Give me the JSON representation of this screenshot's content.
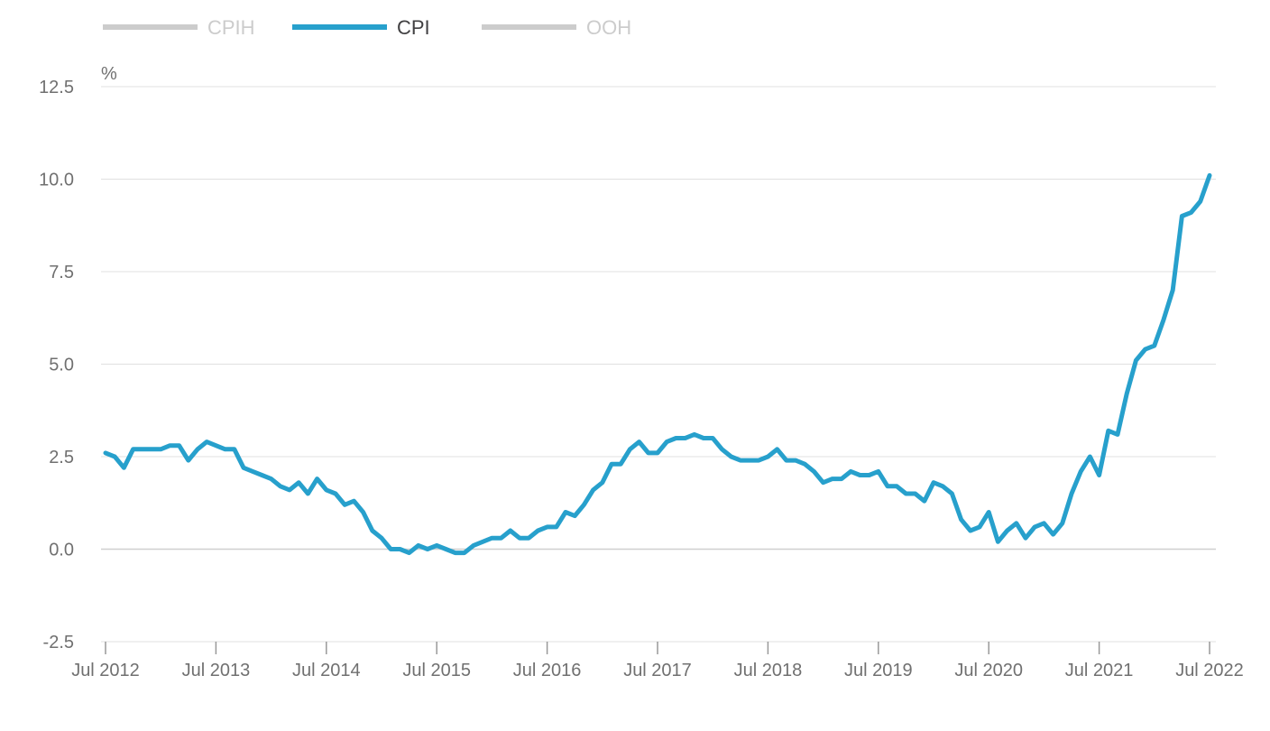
{
  "chart_data": {
    "type": "line",
    "title": "",
    "xlabel": "",
    "ylabel": "%",
    "ylim": [
      -2.5,
      12.5
    ],
    "yticks": [
      "12.5",
      "10.0",
      "7.5",
      "5.0",
      "2.5",
      "0.0",
      "-2.5"
    ],
    "ytick_values": [
      12.5,
      10.0,
      7.5,
      5.0,
      2.5,
      0.0,
      -2.5
    ],
    "xticks": [
      "Jul 2012",
      "Jul 2013",
      "Jul 2014",
      "Jul 2015",
      "Jul 2016",
      "Jul 2017",
      "Jul 2018",
      "Jul 2019",
      "Jul 2020",
      "Jul 2021",
      "Jul 2022"
    ],
    "grid": true,
    "legend_position": "top-left",
    "legend": [
      {
        "name": "CPIH",
        "active": false,
        "color": "#cccccc"
      },
      {
        "name": "CPI",
        "active": true,
        "color": "#27a0cc"
      },
      {
        "name": "OOH",
        "active": false,
        "color": "#cccccc"
      }
    ],
    "x_start": "Jul 2012",
    "x_end": "Jul 2022",
    "series": [
      {
        "name": "CPI",
        "color": "#27a0cc",
        "values": [
          2.6,
          2.5,
          2.2,
          2.7,
          2.7,
          2.7,
          2.7,
          2.8,
          2.8,
          2.4,
          2.7,
          2.9,
          2.8,
          2.7,
          2.7,
          2.2,
          2.1,
          2.0,
          1.9,
          1.7,
          1.6,
          1.8,
          1.5,
          1.9,
          1.6,
          1.5,
          1.2,
          1.3,
          1.0,
          0.5,
          0.3,
          0.0,
          0.0,
          -0.1,
          0.1,
          0.0,
          0.1,
          0.0,
          -0.1,
          -0.1,
          0.1,
          0.2,
          0.3,
          0.3,
          0.5,
          0.3,
          0.3,
          0.5,
          0.6,
          0.6,
          1.0,
          0.9,
          1.2,
          1.6,
          1.8,
          2.3,
          2.3,
          2.7,
          2.9,
          2.6,
          2.6,
          2.9,
          3.0,
          3.0,
          3.1,
          3.0,
          3.0,
          2.7,
          2.5,
          2.4,
          2.4,
          2.4,
          2.5,
          2.7,
          2.4,
          2.4,
          2.3,
          2.1,
          1.8,
          1.9,
          1.9,
          2.1,
          2.0,
          2.0,
          2.1,
          1.7,
          1.7,
          1.5,
          1.5,
          1.3,
          1.8,
          1.7,
          1.5,
          0.8,
          0.5,
          0.6,
          1.0,
          0.2,
          0.5,
          0.7,
          0.3,
          0.6,
          0.7,
          0.4,
          0.7,
          1.5,
          2.1,
          2.5,
          2.0,
          3.2,
          3.1,
          4.2,
          5.1,
          5.4,
          5.5,
          6.2,
          7.0,
          9.0,
          9.1,
          9.4,
          10.1
        ]
      }
    ]
  }
}
